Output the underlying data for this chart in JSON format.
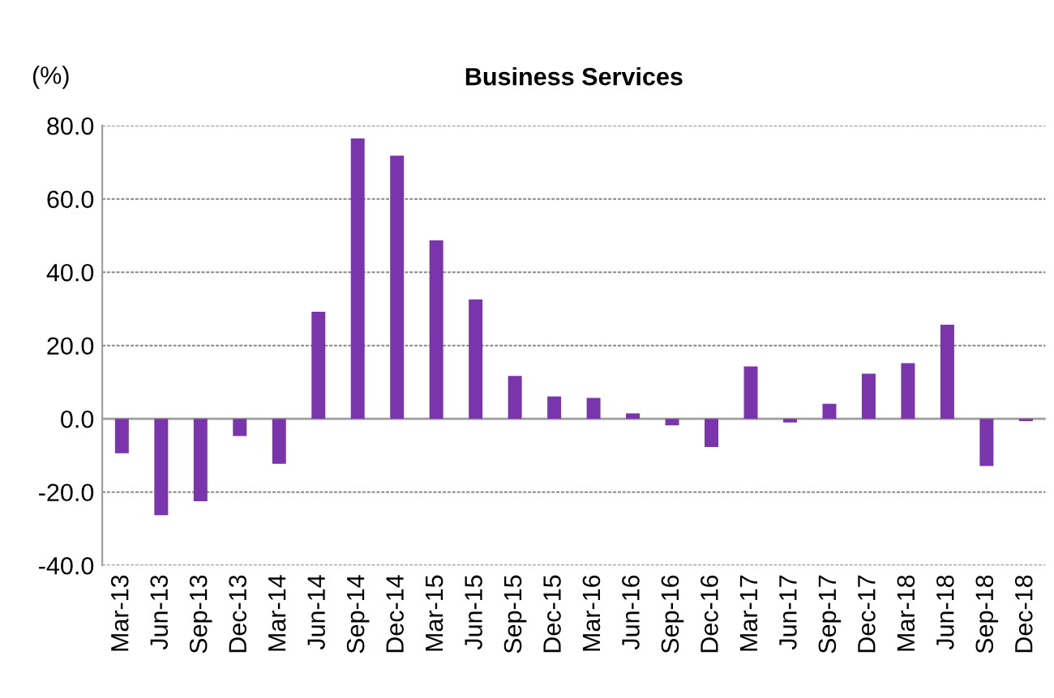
{
  "chart_data": {
    "type": "bar",
    "title": "Business Services",
    "ylabel": "(%)",
    "categories": [
      "Mar-13",
      "Jun-13",
      "Sep-13",
      "Dec-13",
      "Mar-14",
      "Jun-14",
      "Sep-14",
      "Dec-14",
      "Mar-15",
      "Jun-15",
      "Sep-15",
      "Dec-15",
      "Mar-16",
      "Jun-16",
      "Sep-16",
      "Dec-16",
      "Mar-17",
      "Jun-17",
      "Sep-17",
      "Dec-17",
      "Mar-18",
      "Jun-18",
      "Sep-18",
      "Dec-18"
    ],
    "values": [
      -9.4,
      -26.3,
      -22.5,
      -4.7,
      -12.3,
      29.2,
      76.5,
      71.8,
      48.7,
      32.6,
      11.7,
      6.1,
      5.7,
      1.5,
      -1.8,
      -7.7,
      14.3,
      -1.0,
      4.1,
      12.3,
      15.2,
      25.7,
      -12.9,
      -0.6
    ],
    "color": "#7a35ad",
    "ylim": [
      -40,
      80
    ],
    "yticks": [
      {
        "value": -40,
        "label": "-40.0"
      },
      {
        "value": -20,
        "label": "-20.0"
      },
      {
        "value": 0,
        "label": "0.0"
      },
      {
        "value": 20,
        "label": "20.0"
      },
      {
        "value": 40,
        "label": "40.0"
      },
      {
        "value": 60,
        "label": "60.0"
      },
      {
        "value": 80,
        "label": "80.0"
      }
    ],
    "grid": "y"
  }
}
